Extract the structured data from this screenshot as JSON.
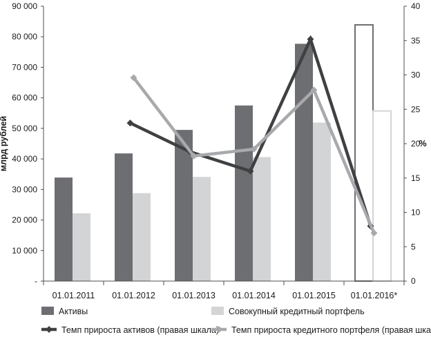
{
  "chart_data": {
    "type": "bar",
    "categories": [
      "01.01.2011",
      "01.01.2012",
      "01.01.2013",
      "01.01.2014",
      "01.01.2015",
      "01.01.2016*"
    ],
    "ylabel_left": "млрд рублей",
    "ylabel_right": "%",
    "ylim_left": [
      0,
      90000
    ],
    "ylim_right": [
      0,
      40
    ],
    "left_ticks": [
      "-",
      "10 000",
      "20 000",
      "30 000",
      "40 000",
      "50 000",
      "60 000",
      "70 000",
      "80 000",
      "90 000"
    ],
    "right_ticks": [
      "0",
      "5",
      "10",
      "15",
      "20",
      "25",
      "30",
      "35",
      "40"
    ],
    "grid": false,
    "legend_position": "bottom",
    "series": [
      {
        "name": "Активы",
        "kind": "bar",
        "axis": "left",
        "color": "#6d6e71",
        "values": [
          33900,
          41800,
          49500,
          57500,
          77700,
          83900
        ],
        "hollow_last": true
      },
      {
        "name": "Совокупный кредитный портфель",
        "kind": "bar",
        "axis": "left",
        "color": "#d3d4d6",
        "values": [
          22200,
          28800,
          34100,
          40600,
          51900,
          55700
        ],
        "hollow_last": true
      },
      {
        "name": "Темп прироста активов (правая шкала)",
        "kind": "line",
        "axis": "right",
        "color": "#3f4042",
        "values": [
          null,
          23,
          18.8,
          16,
          35.2,
          8
        ]
      },
      {
        "name": "Темп прироста кредитного портфеля (правая шкала)",
        "kind": "line",
        "axis": "right",
        "color": "#a7a9ac",
        "values": [
          null,
          29.6,
          18.2,
          19.2,
          27.8,
          7
        ]
      }
    ]
  }
}
